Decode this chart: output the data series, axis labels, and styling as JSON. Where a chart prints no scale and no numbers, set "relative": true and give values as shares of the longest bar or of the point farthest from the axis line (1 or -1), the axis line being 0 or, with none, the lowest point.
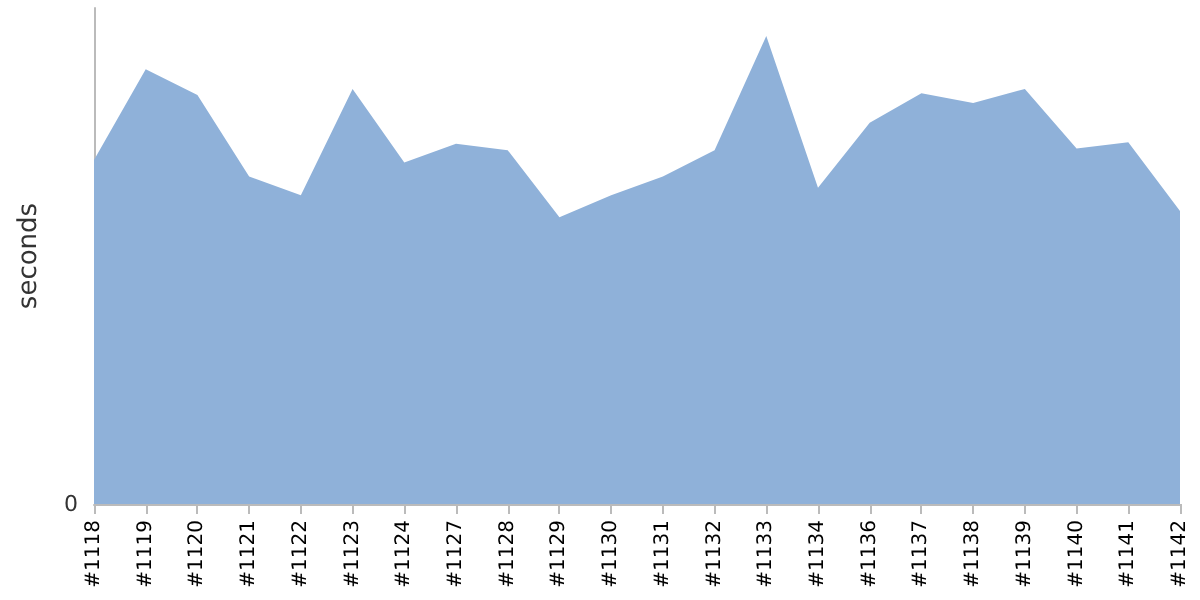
{
  "chart_data": {
    "type": "area",
    "ylabel": "seconds",
    "relative": true,
    "annotations": [
      "0"
    ],
    "categories": [
      "#1118",
      "#1119",
      "#1120",
      "#1121",
      "#1122",
      "#1123",
      "#1124",
      "#1127",
      "#1128",
      "#1129",
      "#1130",
      "#1131",
      "#1132",
      "#1133",
      "#1134",
      "#1136",
      "#1137",
      "#1138",
      "#1139",
      "#1140",
      "#1141",
      "#1142"
    ],
    "series": [
      {
        "color": "#8fb1d9",
        "values": [
          0.735,
          0.929,
          0.874,
          0.7,
          0.66,
          0.887,
          0.73,
          0.77,
          0.756,
          0.613,
          0.66,
          0.7,
          0.756,
          1.0,
          0.676,
          0.815,
          0.878,
          0.857,
          0.887,
          0.76,
          0.773,
          0.626
        ]
      }
    ],
    "grid": false
  }
}
